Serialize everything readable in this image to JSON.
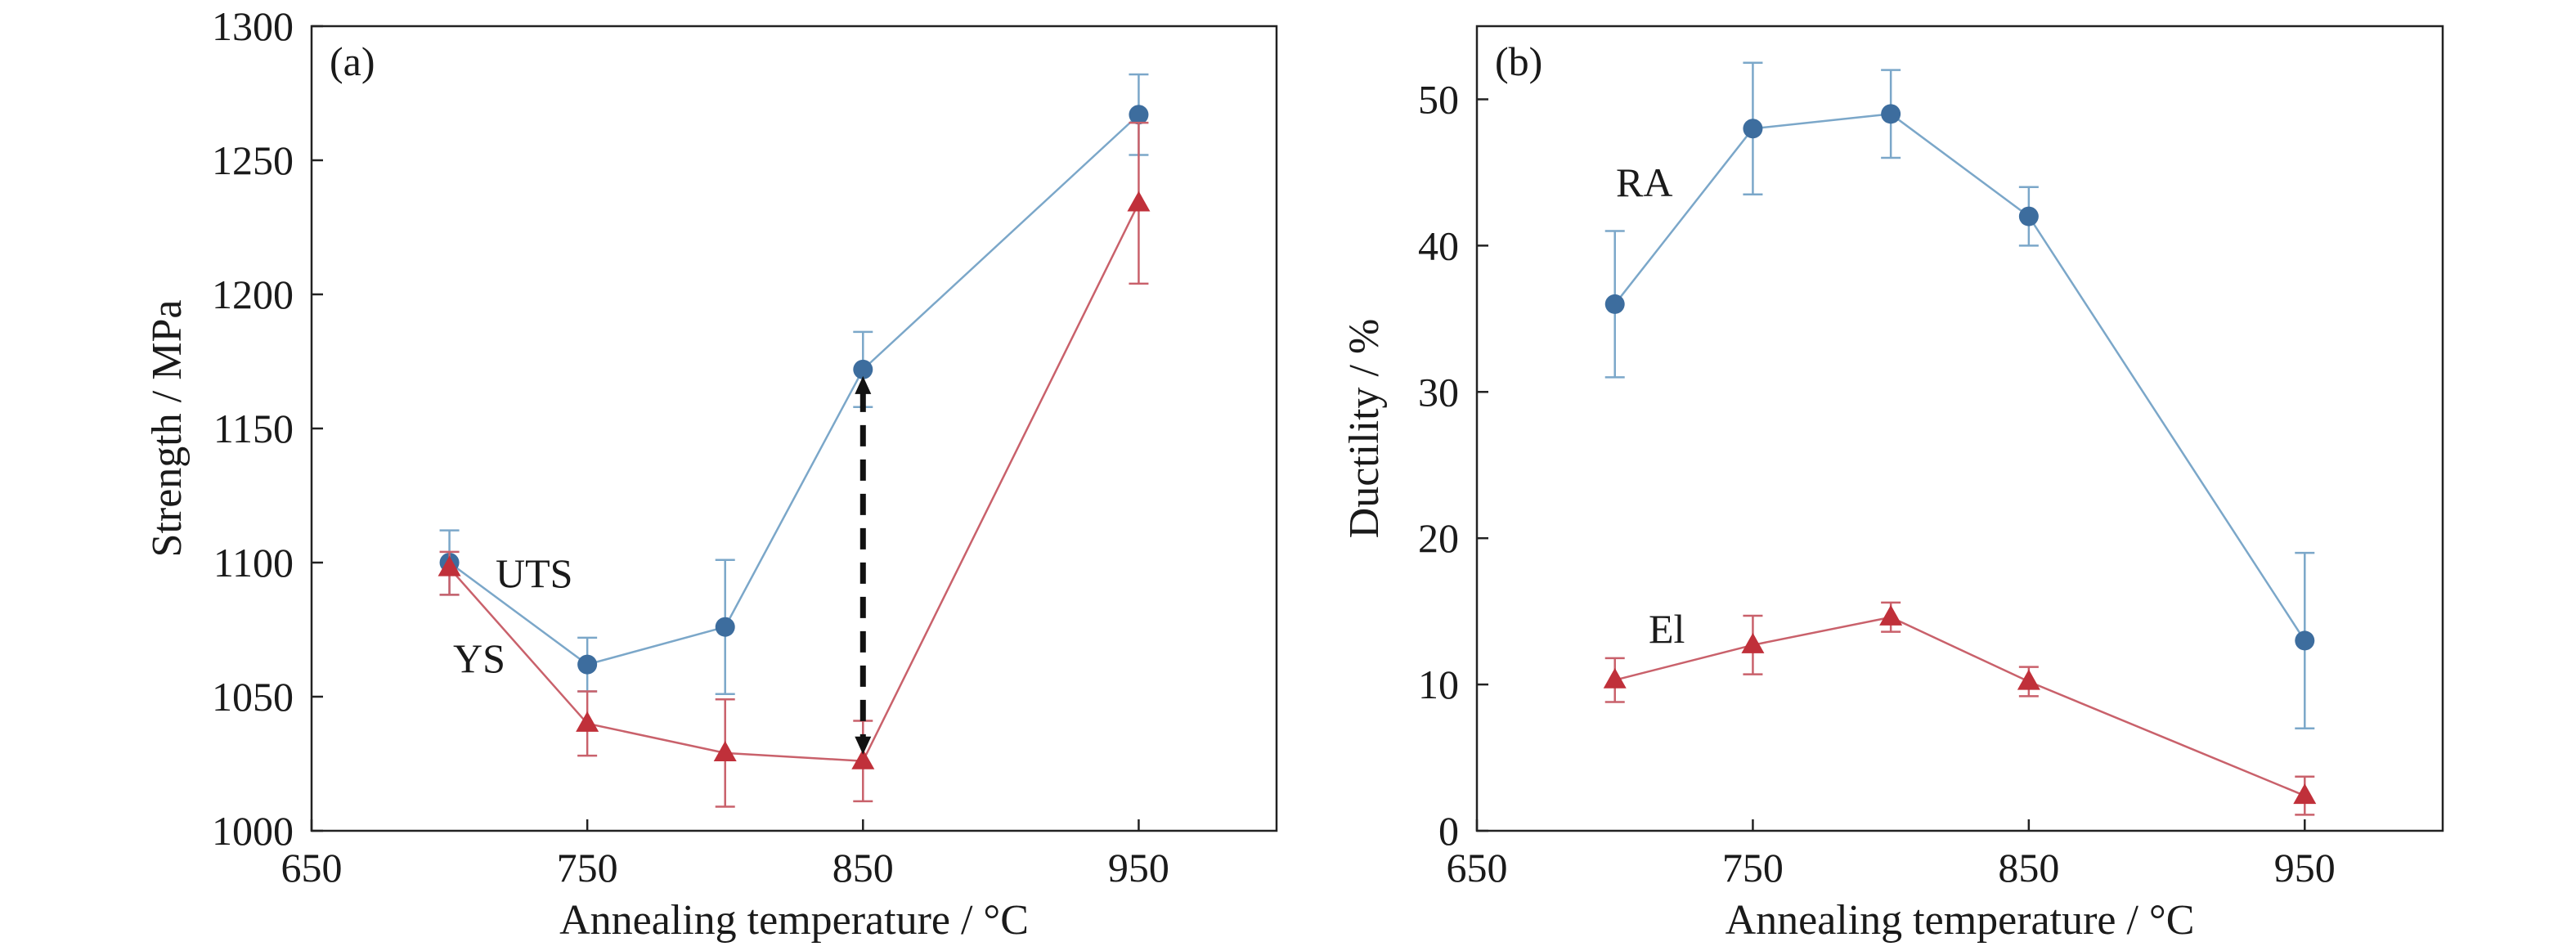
{
  "colors": {
    "blue_series": "#3d6d9e",
    "blue_line": "#7ba7c9",
    "red_series": "#c0303a",
    "red_line": "#c9616b",
    "arrow": "#111111",
    "axis": "#222222"
  },
  "chart_data": [
    {
      "type": "line",
      "panel_label": "(a)",
      "xlabel": "Annealing temperature / °C",
      "ylabel": "Strength / MPa",
      "xlim": [
        650,
        1000
      ],
      "ylim": [
        1000,
        1300
      ],
      "xticks": [
        650,
        750,
        850,
        950
      ],
      "yticks": [
        1000,
        1050,
        1100,
        1150,
        1200,
        1250,
        1300
      ],
      "grid": false,
      "legend": "none",
      "series": [
        {
          "name": "UTS",
          "color_key": "blue",
          "marker": "circle",
          "x": [
            700,
            750,
            800,
            850,
            950
          ],
          "y": [
            1100,
            1062,
            1076,
            1172,
            1267
          ],
          "err_low": [
            12,
            10,
            25,
            14,
            15
          ],
          "err_high": [
            12,
            10,
            25,
            14,
            15
          ]
        },
        {
          "name": "YS",
          "color_key": "red",
          "marker": "triangle",
          "x": [
            700,
            750,
            800,
            850,
            950
          ],
          "y": [
            1098,
            1040,
            1029,
            1026,
            1234
          ],
          "err_low": [
            10,
            12,
            20,
            15,
            30
          ],
          "err_high": [
            6,
            12,
            20,
            15,
            30
          ]
        }
      ],
      "annotations": [
        {
          "type": "double-arrow",
          "style": "dashed",
          "x": 850,
          "y_from": 1026,
          "y_to": 1172
        }
      ]
    },
    {
      "type": "line",
      "panel_label": "(b)",
      "xlabel": "Annealing temperature / °C",
      "ylabel": "Ductility / %",
      "xlim": [
        650,
        1000
      ],
      "ylim": [
        0,
        55
      ],
      "xticks": [
        650,
        750,
        850,
        950
      ],
      "yticks": [
        0,
        10,
        20,
        30,
        40,
        50
      ],
      "grid": false,
      "legend": "none",
      "series": [
        {
          "name": "RA",
          "color_key": "blue",
          "marker": "circle",
          "x": [
            700,
            750,
            800,
            850,
            950
          ],
          "y": [
            36,
            48,
            49,
            42,
            13
          ],
          "err_low": [
            5,
            4.5,
            3,
            2,
            6
          ],
          "err_high": [
            5,
            4.5,
            3,
            2,
            6
          ]
        },
        {
          "name": "El",
          "color_key": "red",
          "marker": "triangle",
          "x": [
            700,
            750,
            800,
            850,
            950
          ],
          "y": [
            10.3,
            12.7,
            14.6,
            10.2,
            2.4
          ],
          "err_low": [
            1.5,
            2,
            1,
            1,
            1.3
          ],
          "err_high": [
            1.5,
            2,
            1,
            1,
            1.3
          ]
        }
      ],
      "annotations": []
    }
  ]
}
